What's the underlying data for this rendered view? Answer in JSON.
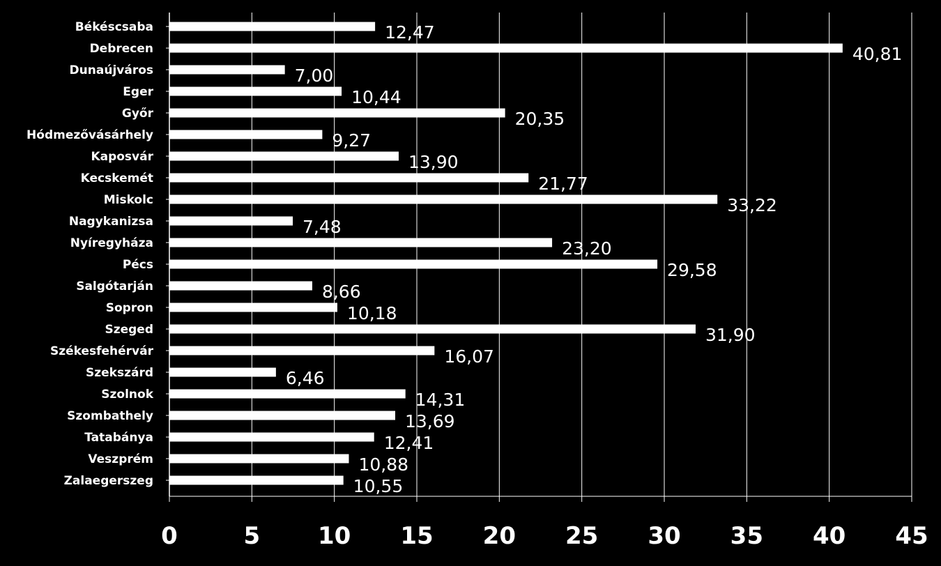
{
  "chart_data": {
    "type": "bar",
    "orientation": "horizontal",
    "categories": [
      "Békéscsaba",
      "Debrecen",
      "Dunaújváros",
      "Eger",
      "Győr",
      "Hódmezővásárhely",
      "Kaposvár",
      "Kecskemét",
      "Miskolc",
      "Nagykanizsa",
      "Nyíregyháza",
      "Pécs",
      "Salgótarján",
      "Sopron",
      "Szeged",
      "Székesfehérvár",
      "Szekszárd",
      "Szolnok",
      "Szombathely",
      "Tatabánya",
      "Veszprém",
      "Zalaegerszeg"
    ],
    "values": [
      12.47,
      40.81,
      7.0,
      10.44,
      20.35,
      9.27,
      13.9,
      21.77,
      33.22,
      7.48,
      23.2,
      29.58,
      8.66,
      10.18,
      31.9,
      16.07,
      6.46,
      14.31,
      13.69,
      12.41,
      10.88,
      10.55
    ],
    "value_labels": [
      "12,47",
      "40,81",
      "7,00",
      "10,44",
      "20,35",
      "9,27",
      "13,90",
      "21,77",
      "33,22",
      "7,48",
      "23,20",
      "29,58",
      "8,66",
      "10,18",
      "31,90",
      "16,07",
      "6,46",
      "14,31",
      "13,69",
      "12,41",
      "10,88",
      "10,55"
    ],
    "x_ticks": [
      "0",
      "5",
      "10",
      "15",
      "20",
      "25",
      "30",
      "35",
      "40",
      "45"
    ],
    "xlim": [
      0,
      45
    ],
    "title": "",
    "xlabel": "",
    "ylabel": "",
    "grid": "vertical",
    "legend": "none"
  },
  "colors": {
    "background": "#000000",
    "bar": "#ffffff",
    "text": "#ffffff",
    "gridline": "#ffffff",
    "axis": "#ffffff"
  }
}
